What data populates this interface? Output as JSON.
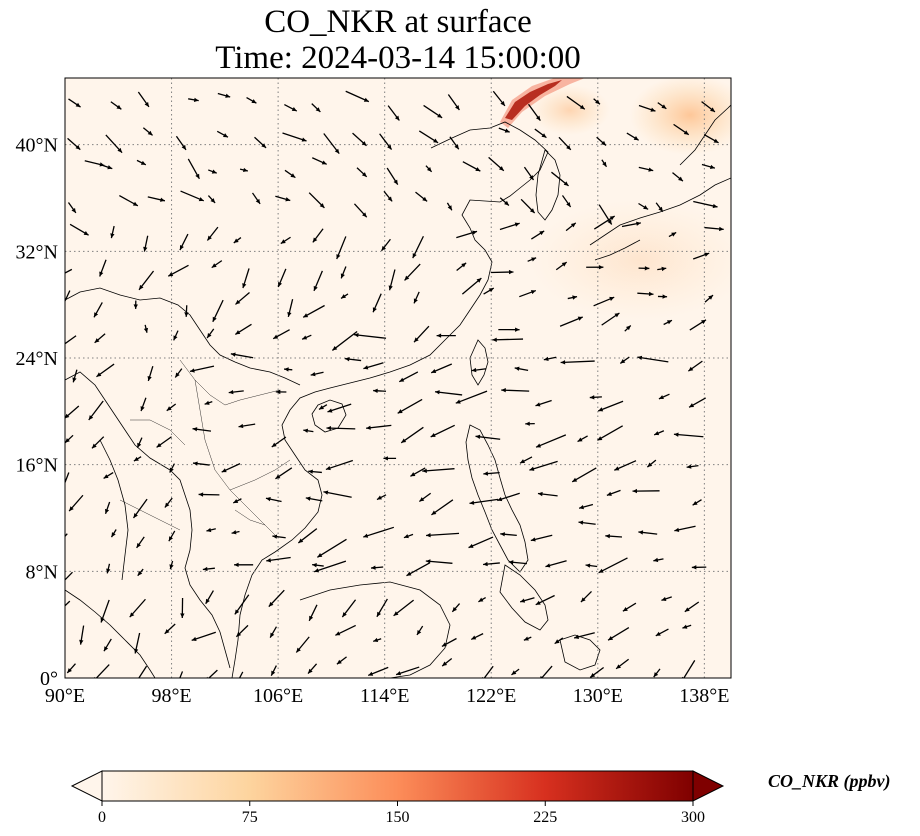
{
  "title": {
    "line1": "CO_NKR at surface",
    "line2": "Time: 2024-03-14 15:00:00"
  },
  "map": {
    "lon_range": [
      90,
      140
    ],
    "lat_range": [
      0,
      45
    ],
    "lon_ticks": [
      {
        "lon": 90,
        "label": "90°E"
      },
      {
        "lon": 98,
        "label": "98°E"
      },
      {
        "lon": 106,
        "label": "106°E"
      },
      {
        "lon": 114,
        "label": "114°E"
      },
      {
        "lon": 122,
        "label": "122°E"
      },
      {
        "lon": 130,
        "label": "130°E"
      },
      {
        "lon": 138,
        "label": "138°E"
      }
    ],
    "lat_ticks": [
      {
        "lat": 0,
        "label": "0°"
      },
      {
        "lat": 8,
        "label": "8°N"
      },
      {
        "lat": 16,
        "label": "16°N"
      },
      {
        "lat": 24,
        "label": "24°N"
      },
      {
        "lat": 32,
        "label": "32°N"
      },
      {
        "lat": 40,
        "label": "40°N"
      }
    ],
    "gridlines": "dotted",
    "background_color": "#fff5eb",
    "coastline_color": "#000000",
    "wind_arrows": true
  },
  "colorbar": {
    "label": "CO_NKR (ppbv)",
    "ticks": [
      "0",
      "75",
      "150",
      "225",
      "300"
    ],
    "min": 0,
    "max": 300,
    "colormap": "OrRd",
    "colors": [
      "#fff5eb",
      "#fdd49e",
      "#fc8d59",
      "#d7301f",
      "#7f0000"
    ],
    "extend": "both"
  }
}
